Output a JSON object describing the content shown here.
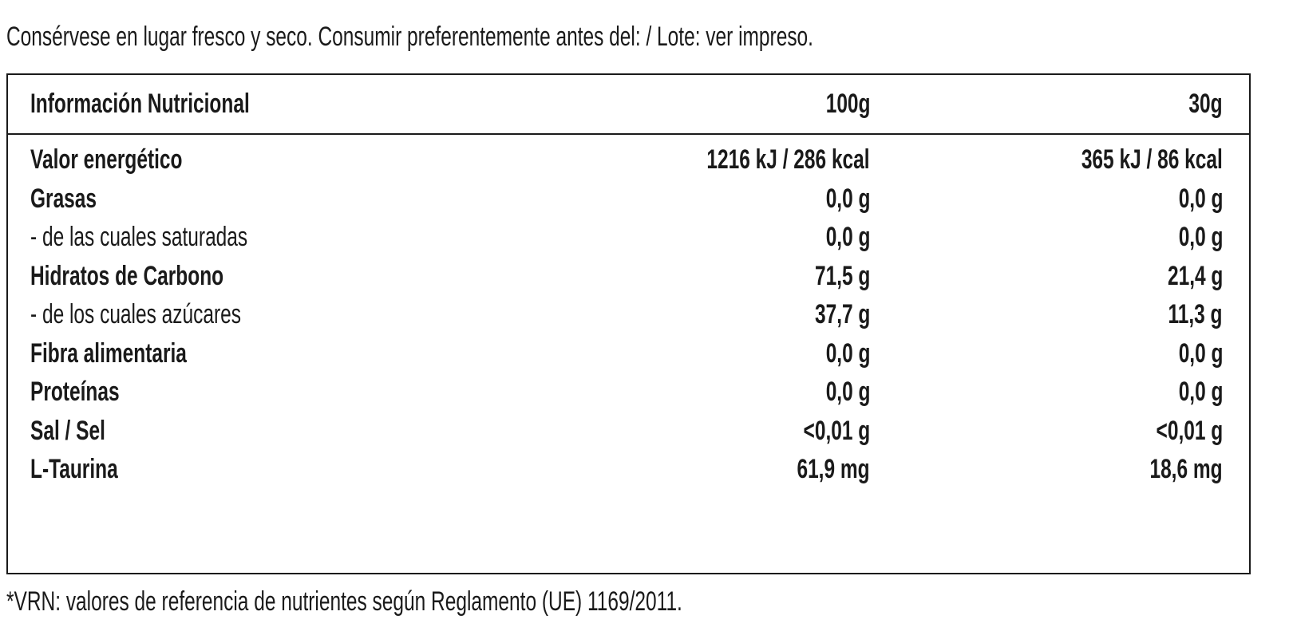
{
  "note": "Consérvese en lugar fresco y seco. Consumir preferentemente antes del: / Lote: ver impreso.",
  "table": {
    "header": [
      "Información Nutricional",
      "100g",
      "30g"
    ],
    "rows": [
      [
        "Valor energético",
        "1216 kJ / 286 kcal",
        "365 kJ / 86 kcal"
      ],
      [
        "Grasas",
        "0,0 g",
        "0,0 g"
      ],
      [
        "- de las cuales saturadas",
        "0,0 g",
        "0,0 g"
      ],
      [
        "Hidratos de Carbono",
        "71,5 g",
        "21,4 g"
      ],
      [
        "- de los cuales azúcares",
        "37,7 g",
        "11,3 g"
      ],
      [
        "Fibra alimentaria",
        "0,0 g",
        "0,0 g"
      ],
      [
        "Proteínas",
        "0,0 g",
        "0,0 g"
      ],
      [
        "Sal / Sel",
        "<0,01 g",
        "<0,01 g"
      ],
      [
        "L-Taurina",
        "61,9 mg",
        "18,6 mg"
      ]
    ]
  },
  "footnote": "*VRN: valores de referencia de nutrientes según Reglamento (UE) 1169/2011."
}
